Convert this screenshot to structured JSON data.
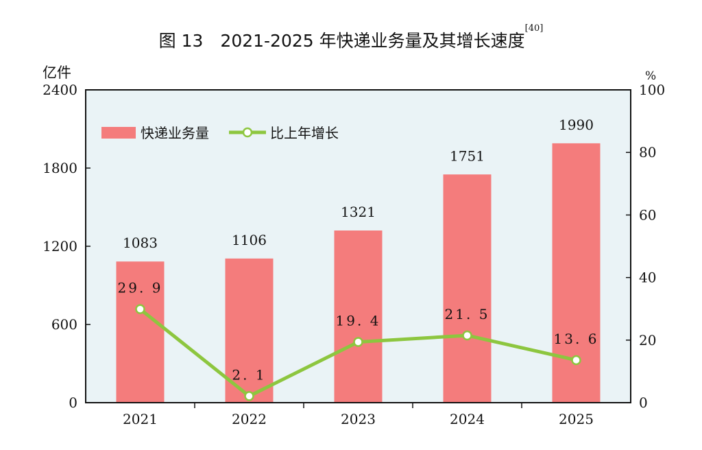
{
  "chart_data": {
    "type": "bar+line",
    "title": "图 13　2021-2025 年快递业务量及其增长速度",
    "title_note": "[40]",
    "categories": [
      "2021",
      "2022",
      "2023",
      "2024",
      "2025"
    ],
    "series": [
      {
        "name": "快递业务量",
        "type": "bar",
        "axis": "left",
        "values": [
          1083,
          1106,
          1321,
          1751,
          1990
        ],
        "labels": [
          "1083",
          "1106",
          "1321",
          "1751",
          "1990"
        ],
        "color": "#F47C7C"
      },
      {
        "name": "比上年增长",
        "type": "line",
        "axis": "right",
        "values": [
          29.9,
          2.1,
          19.4,
          21.5,
          13.6
        ],
        "labels": [
          "29.9",
          "2.1",
          "19.4",
          "21.5",
          "13.6"
        ],
        "color": "#8DC63F"
      }
    ],
    "left_axis": {
      "unit": "亿件",
      "ylim": [
        0,
        2400
      ],
      "ticks": [
        "0",
        "600",
        "1200",
        "1800",
        "2400"
      ]
    },
    "right_axis": {
      "unit": "%",
      "ylim": [
        0,
        100
      ],
      "ticks": [
        "0",
        "20",
        "40",
        "60",
        "80",
        "100"
      ]
    },
    "legend": "top-left",
    "grid": false,
    "background": "#EAF3F6"
  }
}
